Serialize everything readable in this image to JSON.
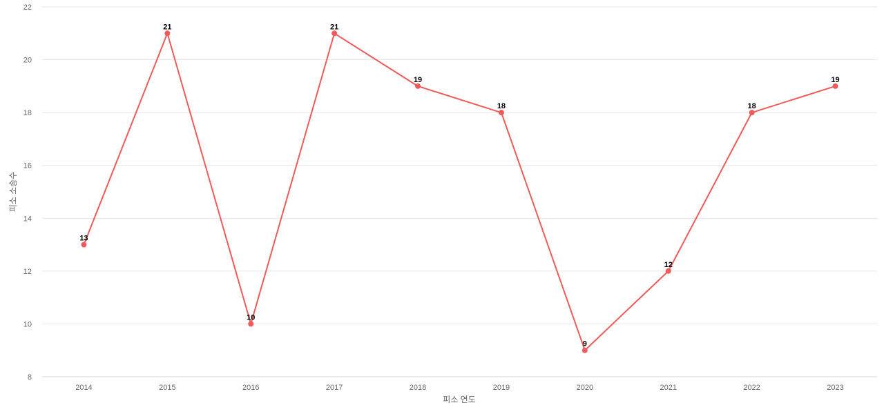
{
  "chart_data": {
    "type": "line",
    "title": "",
    "xlabel": "피소 연도",
    "ylabel": "피소 소송수",
    "categories": [
      "2014",
      "2015",
      "2016",
      "2017",
      "2018",
      "2019",
      "2020",
      "2021",
      "2022",
      "2023"
    ],
    "series": [
      {
        "values": [
          13,
          21,
          10,
          21,
          19,
          18,
          9,
          12,
          18,
          19
        ]
      }
    ],
    "ylim": [
      8,
      22
    ],
    "yticks": [
      8,
      10,
      12,
      14,
      16,
      18,
      20,
      22
    ],
    "grid": true,
    "data_labels": true,
    "colors": {
      "line": "#ef5a5a",
      "marker": "#ef5a5a"
    }
  }
}
